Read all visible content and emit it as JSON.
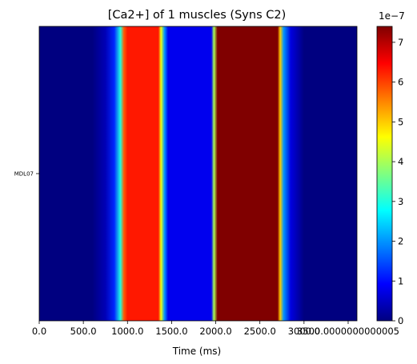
{
  "chart_data": {
    "type": "heatmap",
    "title": "[Ca2+] of 1 muscles (Syns C2)",
    "xlabel": "Time (ms)",
    "ylabel": "",
    "rows": [
      "MDL07"
    ],
    "xlim": [
      0,
      3600
    ],
    "x_tick_values": [
      0,
      500,
      1000,
      1500,
      2000,
      2500,
      3000,
      3500
    ],
    "x_tick_labels": [
      "0.0",
      "500.0",
      "1000.0",
      "1500.0",
      "2000.0",
      "2500.0",
      "3000.0",
      "3500.0000000000005"
    ],
    "colorbar": {
      "colormap": "jet",
      "range": [
        0,
        7.4
      ],
      "tick_values": [
        0,
        1,
        2,
        3,
        4,
        5,
        6,
        7
      ],
      "tick_labels": [
        "0",
        "1",
        "2",
        "3",
        "4",
        "5",
        "6",
        "7"
      ],
      "exponent_label": "1e−7"
    },
    "time_profile": {
      "time_ms": [
        0,
        600,
        750,
        850,
        920,
        960,
        1000,
        1350,
        1380,
        1420,
        1460,
        1950,
        1980,
        2020,
        2700,
        2730,
        2770,
        2850,
        3000,
        3600
      ],
      "value_e7": [
        0,
        0,
        0.4,
        1.2,
        3.0,
        5.8,
        6.3,
        6.3,
        4.5,
        2.0,
        0.8,
        0.8,
        4.0,
        7.4,
        7.4,
        5.0,
        2.0,
        0.7,
        0,
        0
      ]
    }
  }
}
